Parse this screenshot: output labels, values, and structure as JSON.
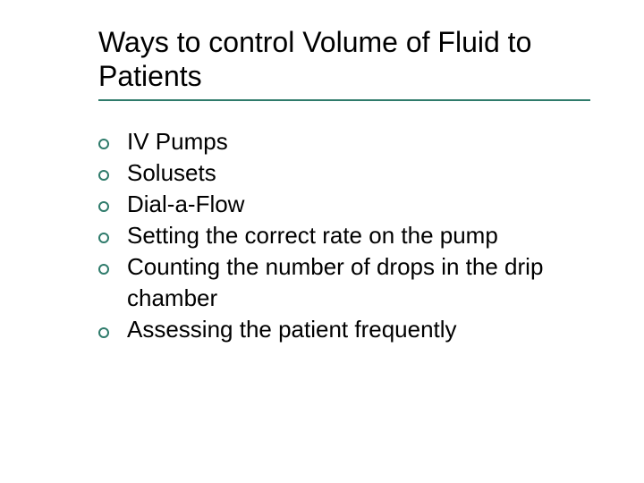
{
  "title": "Ways to control Volume of Fluid to Patients",
  "title_fontsize": 32,
  "title_color": "#000000",
  "underline_color": "#2f7b6b",
  "bullet_color": "#2f7b6b",
  "body_fontsize": 26,
  "body_color": "#000000",
  "background_color": "#ffffff",
  "bullets": [
    "IV Pumps",
    "Solusets",
    "Dial-a-Flow",
    "Setting the correct rate on the pump",
    "Counting the number of drops in the drip chamber",
    "Assessing the patient frequently"
  ]
}
